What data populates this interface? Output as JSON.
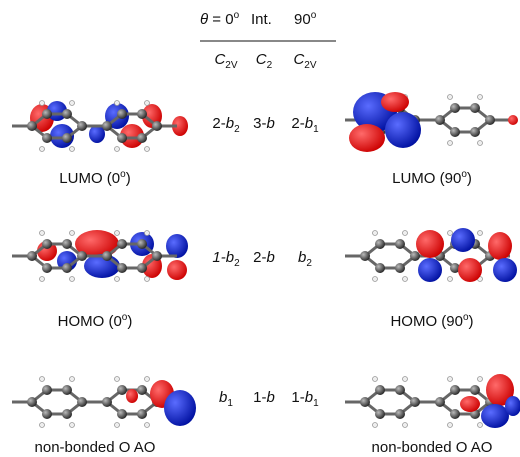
{
  "header": {
    "left": [
      {
        "italic": "θ"
      },
      {
        "roman": " = 0"
      },
      {
        "sup": "o"
      }
    ],
    "middle": [
      {
        "roman": "Int."
      }
    ],
    "right": [
      {
        "roman": "90"
      },
      {
        "sup": "o"
      }
    ]
  },
  "groups": [
    [
      {
        "italic": "C"
      },
      {
        "sub": "2V"
      }
    ],
    [
      {
        "italic": "C"
      },
      {
        "sub": "2"
      }
    ],
    [
      {
        "italic": "C"
      },
      {
        "sub": "2V"
      }
    ]
  ],
  "rows": [
    {
      "labels": [
        [
          {
            "roman": "2-"
          },
          {
            "italic": "b"
          },
          {
            "sub": "2"
          }
        ],
        [
          {
            "roman": "3-"
          },
          {
            "italic": "b"
          }
        ],
        [
          {
            "roman": "2-"
          },
          {
            "italic": "b"
          },
          {
            "sub": "1"
          }
        ]
      ],
      "left_caption": [
        {
          "roman": "LUMO (0"
        },
        {
          "sup": "o"
        },
        {
          "roman": ")"
        }
      ],
      "right_caption": [
        {
          "roman": "LUMO (90"
        },
        {
          "sup": "o"
        },
        {
          "roman": ")"
        }
      ]
    },
    {
      "labels": [
        [
          {
            "italic": "1-b"
          },
          {
            "sub": "2"
          }
        ],
        [
          {
            "roman": "2-"
          },
          {
            "italic": "b"
          }
        ],
        [
          {
            "italic": "b"
          },
          {
            "sub": "2"
          }
        ]
      ],
      "left_caption": [
        {
          "roman": "HOMO (0"
        },
        {
          "sup": "o"
        },
        {
          "roman": ")"
        }
      ],
      "right_caption": [
        {
          "roman": "HOMO (90"
        },
        {
          "sup": "o"
        },
        {
          "roman": ")"
        }
      ]
    },
    {
      "labels": [
        [
          {
            "italic": "b"
          },
          {
            "sub": "1"
          }
        ],
        [
          {
            "roman": "1-"
          },
          {
            "italic": "b"
          }
        ],
        [
          {
            "roman": "1-"
          },
          {
            "italic": "b"
          },
          {
            "sub": "1"
          }
        ]
      ],
      "left_caption": [
        {
          "roman": "non-bonded O AO"
        }
      ],
      "right_caption": [
        {
          "roman": "non-bonded O AO"
        }
      ]
    }
  ]
}
